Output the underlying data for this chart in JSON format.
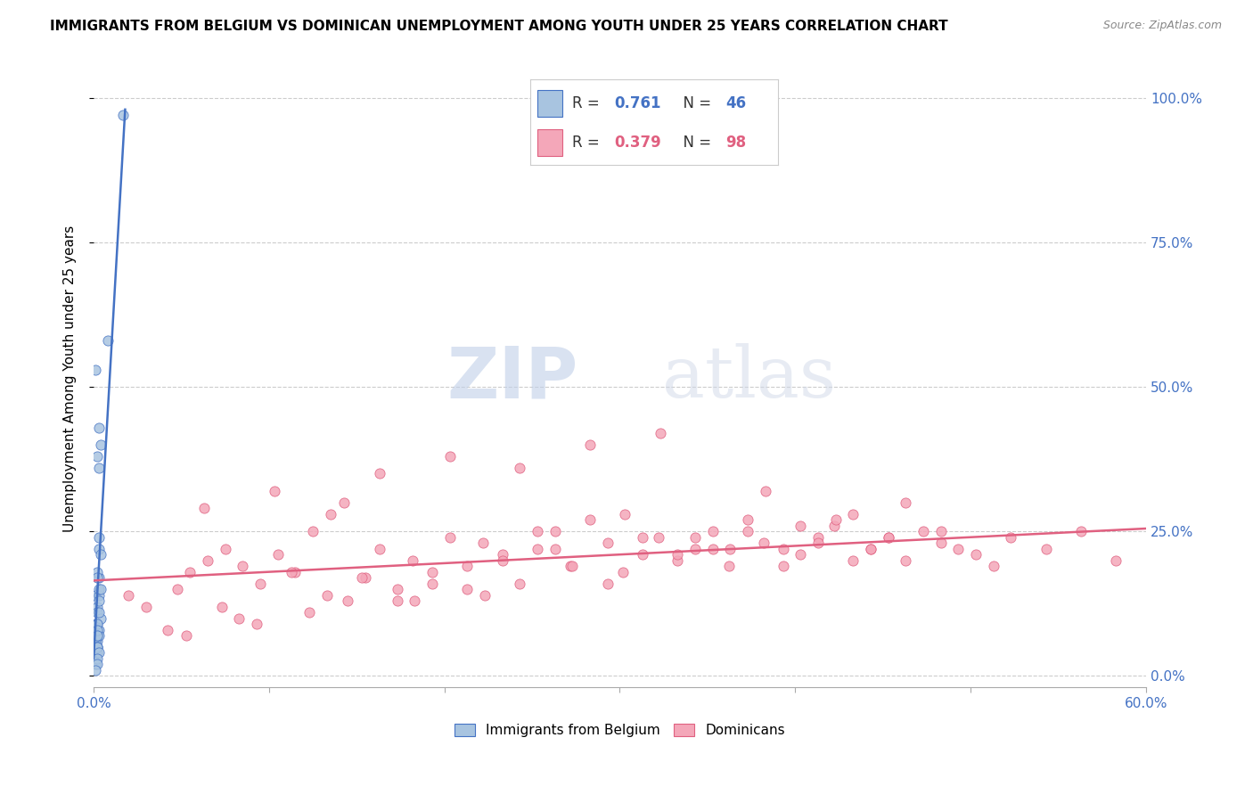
{
  "title": "IMMIGRANTS FROM BELGIUM VS DOMINICAN UNEMPLOYMENT AMONG YOUTH UNDER 25 YEARS CORRELATION CHART",
  "source": "Source: ZipAtlas.com",
  "ylabel": "Unemployment Among Youth under 25 years",
  "xlim": [
    0.0,
    0.6
  ],
  "ylim": [
    -0.02,
    1.05
  ],
  "x_ticks": [
    0.0,
    0.1,
    0.2,
    0.3,
    0.4,
    0.5,
    0.6
  ],
  "x_tick_labels_outer": [
    "0.0%",
    "",
    "",
    "",
    "",
    "",
    "60.0%"
  ],
  "y_ticks_right": [
    0.0,
    0.25,
    0.5,
    0.75,
    1.0
  ],
  "y_tick_labels_right": [
    "0.0%",
    "25.0%",
    "50.0%",
    "75.0%",
    "100.0%"
  ],
  "belgium_color": "#a8c4e0",
  "dominican_color": "#f4a7b9",
  "belgium_line_color": "#4472c4",
  "dominican_line_color": "#e06080",
  "r_belgium": 0.761,
  "n_belgium": 46,
  "r_dominican": 0.379,
  "n_dominican": 98,
  "watermark_zip": "ZIP",
  "watermark_atlas": "atlas",
  "watermark_color": "#c8d8f0",
  "legend_label_belgium": "Immigrants from Belgium",
  "legend_label_dominican": "Dominicans",
  "belgium_scatter_x": [
    0.001,
    0.001,
    0.002,
    0.001,
    0.002,
    0.001,
    0.002,
    0.002,
    0.003,
    0.002,
    0.003,
    0.003,
    0.002,
    0.004,
    0.003,
    0.002,
    0.003,
    0.001,
    0.004,
    0.003,
    0.002,
    0.001,
    0.003,
    0.002,
    0.004,
    0.001,
    0.003,
    0.002,
    0.003,
    0.002,
    0.001,
    0.002,
    0.002,
    0.003,
    0.002,
    0.003,
    0.004,
    0.002,
    0.002,
    0.001,
    0.008,
    0.003,
    0.002,
    0.017,
    0.002,
    0.001
  ],
  "belgium_scatter_y": [
    0.05,
    0.04,
    0.07,
    0.09,
    0.12,
    0.14,
    0.11,
    0.09,
    0.17,
    0.18,
    0.22,
    0.24,
    0.17,
    0.21,
    0.14,
    0.38,
    0.43,
    0.53,
    0.4,
    0.36,
    0.06,
    0.05,
    0.08,
    0.07,
    0.1,
    0.06,
    0.13,
    0.09,
    0.15,
    0.05,
    0.03,
    0.05,
    0.04,
    0.07,
    0.08,
    0.11,
    0.15,
    0.07,
    0.05,
    0.02,
    0.58,
    0.04,
    0.03,
    0.97,
    0.02,
    0.01
  ],
  "dominican_scatter_x": [
    0.02,
    0.03,
    0.048,
    0.055,
    0.065,
    0.075,
    0.085,
    0.095,
    0.105,
    0.115,
    0.125,
    0.135,
    0.145,
    0.155,
    0.163,
    0.173,
    0.182,
    0.193,
    0.203,
    0.213,
    0.222,
    0.233,
    0.243,
    0.253,
    0.263,
    0.272,
    0.283,
    0.293,
    0.302,
    0.313,
    0.322,
    0.333,
    0.343,
    0.353,
    0.362,
    0.373,
    0.382,
    0.393,
    0.403,
    0.413,
    0.422,
    0.433,
    0.443,
    0.453,
    0.463,
    0.473,
    0.483,
    0.493,
    0.503,
    0.513,
    0.042,
    0.063,
    0.083,
    0.103,
    0.123,
    0.143,
    0.163,
    0.183,
    0.203,
    0.223,
    0.243,
    0.263,
    0.283,
    0.303,
    0.323,
    0.343,
    0.363,
    0.383,
    0.403,
    0.423,
    0.443,
    0.463,
    0.483,
    0.523,
    0.543,
    0.563,
    0.583,
    0.053,
    0.073,
    0.093,
    0.113,
    0.133,
    0.153,
    0.173,
    0.193,
    0.213,
    0.233,
    0.253,
    0.273,
    0.293,
    0.313,
    0.333,
    0.353,
    0.373,
    0.393,
    0.413,
    0.433,
    0.453
  ],
  "dominican_scatter_y": [
    0.14,
    0.12,
    0.15,
    0.18,
    0.2,
    0.22,
    0.19,
    0.16,
    0.21,
    0.18,
    0.25,
    0.28,
    0.13,
    0.17,
    0.22,
    0.15,
    0.2,
    0.18,
    0.24,
    0.19,
    0.23,
    0.21,
    0.16,
    0.25,
    0.22,
    0.19,
    0.27,
    0.23,
    0.18,
    0.21,
    0.24,
    0.2,
    0.22,
    0.25,
    0.19,
    0.27,
    0.23,
    0.22,
    0.21,
    0.24,
    0.26,
    0.28,
    0.22,
    0.24,
    0.2,
    0.25,
    0.23,
    0.22,
    0.21,
    0.19,
    0.08,
    0.29,
    0.1,
    0.32,
    0.11,
    0.3,
    0.35,
    0.13,
    0.38,
    0.14,
    0.36,
    0.25,
    0.4,
    0.28,
    0.42,
    0.24,
    0.22,
    0.32,
    0.26,
    0.27,
    0.22,
    0.3,
    0.25,
    0.24,
    0.22,
    0.25,
    0.2,
    0.07,
    0.12,
    0.09,
    0.18,
    0.14,
    0.17,
    0.13,
    0.16,
    0.15,
    0.2,
    0.22,
    0.19,
    0.16,
    0.24,
    0.21,
    0.22,
    0.25,
    0.19,
    0.23,
    0.2,
    0.24
  ],
  "belgium_trend_x": [
    0.0,
    0.018
  ],
  "belgium_trend_y": [
    0.03,
    0.98
  ],
  "dominican_trend_x": [
    0.0,
    0.6
  ],
  "dominican_trend_y": [
    0.165,
    0.255
  ]
}
